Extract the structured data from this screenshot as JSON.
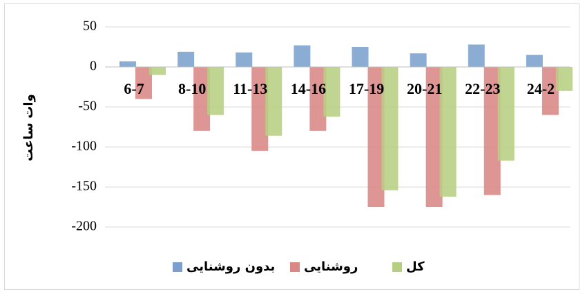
{
  "chart_data": {
    "type": "bar",
    "y_label": "وات ساعت",
    "categories": [
      "6-7",
      "8-10",
      "11-13",
      "14-16",
      "17-19",
      "20-21",
      "22-23",
      "24-2"
    ],
    "series": [
      {
        "name": "بدون روشنایی",
        "color": "#7ba0cd",
        "values": [
          7,
          19,
          18,
          27,
          25,
          17,
          28,
          15
        ]
      },
      {
        "name": "روشنایی",
        "color": "#d98886",
        "values": [
          -40,
          -80,
          -105,
          -80,
          -175,
          -175,
          -160,
          -60
        ]
      },
      {
        "name": "کل",
        "color": "#b7cf82",
        "values": [
          -10,
          -60,
          -86,
          -62,
          -154,
          -162,
          -117,
          -30
        ]
      }
    ],
    "ylim": [
      -200,
      50
    ],
    "yticks": [
      -200,
      -150,
      -100,
      -50,
      0,
      50
    ],
    "grid": true,
    "legend": "bottom"
  }
}
